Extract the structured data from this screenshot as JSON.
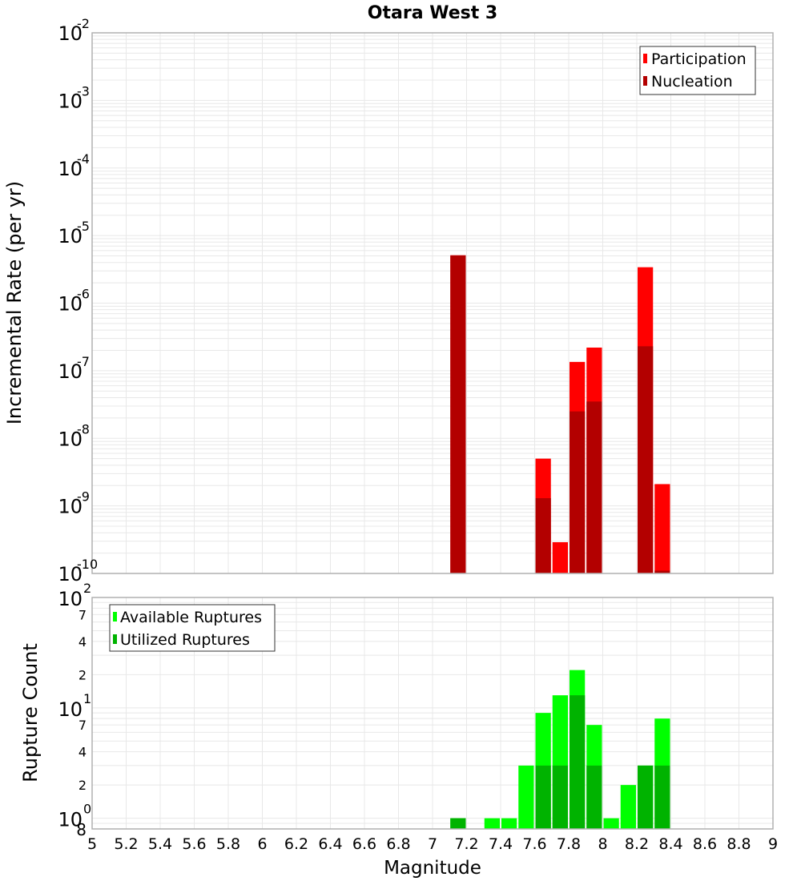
{
  "title": "Otara West 3",
  "colors": {
    "participation": "#ff0000",
    "nucleation": "#b30000",
    "available": "#00ff00",
    "utilized": "#00b300",
    "grid": "#e8e8e8",
    "frame": "#b0b0b0"
  },
  "chart_data": [
    {
      "type": "bar",
      "title": "Otara West 3",
      "xlabel": "Magnitude",
      "ylabel": "Incremental Rate (per yr)",
      "yscale": "log",
      "xlim": [
        5,
        9
      ],
      "ylim": [
        1e-10,
        0.01
      ],
      "y_ticks": [
        "10^-2",
        "10^-3",
        "10^-4",
        "10^-5",
        "10^-6",
        "10^-7",
        "10^-8",
        "10^-9",
        "10^-10"
      ],
      "x_ticks": [
        "5",
        "5.2",
        "5.4",
        "5.6",
        "5.8",
        "6",
        "6.2",
        "6.4",
        "6.6",
        "6.8",
        "7",
        "7.2",
        "7.4",
        "7.6",
        "7.8",
        "8",
        "8.2",
        "8.4",
        "8.6",
        "8.8",
        "9"
      ],
      "legend": [
        "Participation",
        "Nucleation"
      ],
      "legend_position": "top-right",
      "grid": true,
      "bin_width": 0.1,
      "categories": [
        7.15,
        7.65,
        7.75,
        7.85,
        7.95,
        8.25,
        8.35
      ],
      "series": [
        {
          "name": "Participation",
          "values": [
            5.1e-06,
            5e-09,
            2.9e-10,
            1.35e-07,
            2.2e-07,
            3.4e-06,
            2.1e-09
          ]
        },
        {
          "name": "Nucleation",
          "values": [
            5.1e-06,
            1.3e-09,
            null,
            2.5e-08,
            3.5e-08,
            2.3e-07,
            1.1e-10
          ]
        }
      ]
    },
    {
      "type": "bar",
      "xlabel": "Magnitude",
      "ylabel": "Rupture Count",
      "yscale": "log",
      "xlim": [
        5,
        9
      ],
      "ylim": [
        0.8,
        100
      ],
      "y_ticks": [
        "10^2",
        "7",
        "4",
        "2",
        "10^1",
        "7",
        "4",
        "2",
        "10^0",
        "8"
      ],
      "x_ticks": [
        "5",
        "5.2",
        "5.4",
        "5.6",
        "5.8",
        "6",
        "6.2",
        "6.4",
        "6.6",
        "6.8",
        "7",
        "7.2",
        "7.4",
        "7.6",
        "7.8",
        "8",
        "8.2",
        "8.4",
        "8.6",
        "8.8",
        "9"
      ],
      "legend": [
        "Available Ruptures",
        "Utilized Ruptures"
      ],
      "legend_position": "top-left",
      "grid": true,
      "bin_width": 0.1,
      "categories": [
        7.15,
        7.35,
        7.45,
        7.55,
        7.65,
        7.75,
        7.85,
        7.95,
        8.05,
        8.15,
        8.25,
        8.35
      ],
      "series": [
        {
          "name": "Available Ruptures",
          "values": [
            1,
            1,
            1,
            3,
            9,
            13,
            22,
            7,
            1,
            2,
            3,
            8
          ]
        },
        {
          "name": "Utilized Ruptures",
          "values": [
            1,
            0,
            0,
            0,
            3,
            3,
            13,
            3,
            0,
            0,
            3,
            3
          ]
        }
      ]
    }
  ]
}
